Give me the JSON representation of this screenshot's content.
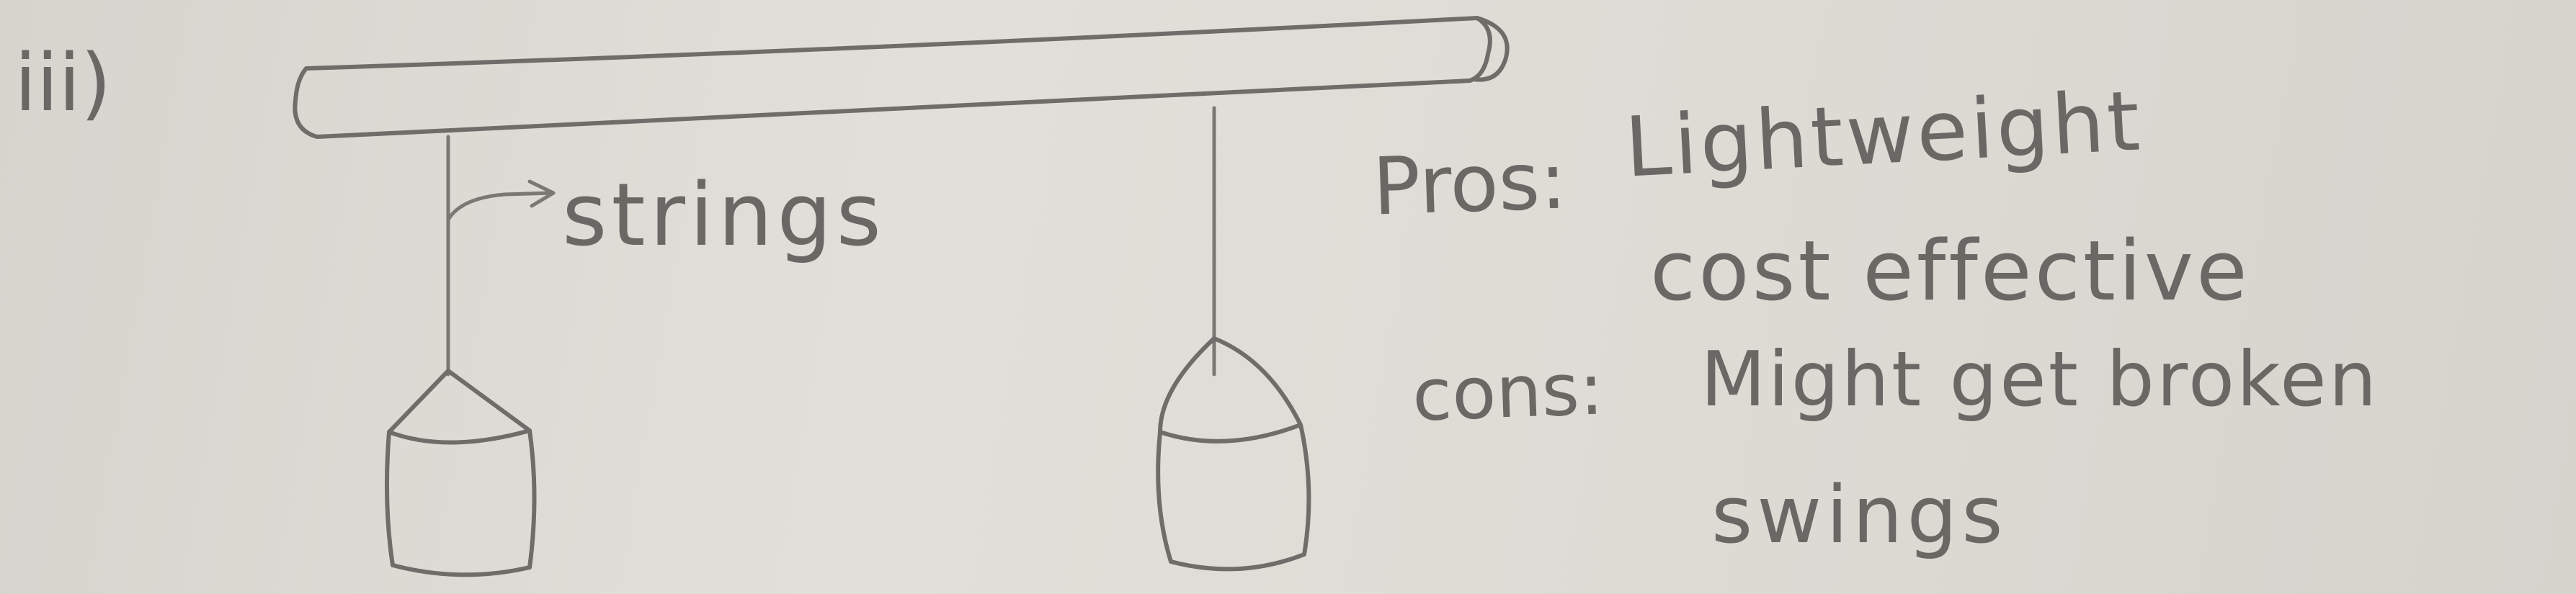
{
  "diagram": {
    "question_label": "iii)",
    "string_label": "strings",
    "pros": {
      "heading": "Pros:",
      "items": [
        "Lightweight",
        "cost effective"
      ]
    },
    "cons": {
      "heading": "cons:",
      "items": [
        "Might get broken",
        "swings"
      ]
    }
  }
}
